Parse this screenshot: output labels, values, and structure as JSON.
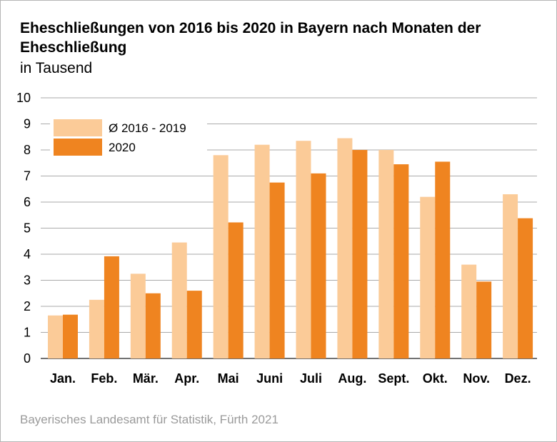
{
  "title": "Eheschließungen von 2016 bis 2020 in Bayern nach Monaten der Eheschließung",
  "subtitle": "in Tausend",
  "source": "Bayerisches Landesamt für Statistik, Fürth 2021",
  "chart_data": {
    "type": "bar",
    "categories": [
      "Jan.",
      "Feb.",
      "Mär.",
      "Apr.",
      "Mai",
      "Juni",
      "Juli",
      "Aug.",
      "Sept.",
      "Okt.",
      "Nov.",
      "Dez."
    ],
    "series": [
      {
        "name": "Ø 2016 - 2019",
        "color": "#fbcb98",
        "values": [
          1.65,
          2.25,
          3.25,
          4.45,
          7.8,
          8.2,
          8.35,
          8.45,
          8.0,
          6.2,
          3.6,
          6.3
        ]
      },
      {
        "name": "2020",
        "color": "#ef8420",
        "values": [
          1.68,
          3.92,
          2.5,
          2.6,
          5.22,
          6.75,
          7.1,
          8.0,
          7.45,
          7.55,
          2.95,
          5.38
        ]
      }
    ],
    "yticks": [
      0,
      1,
      2,
      3,
      4,
      5,
      6,
      7,
      8,
      9,
      10
    ],
    "ylim": [
      0,
      10
    ],
    "grid": true,
    "legend": "top-left"
  }
}
